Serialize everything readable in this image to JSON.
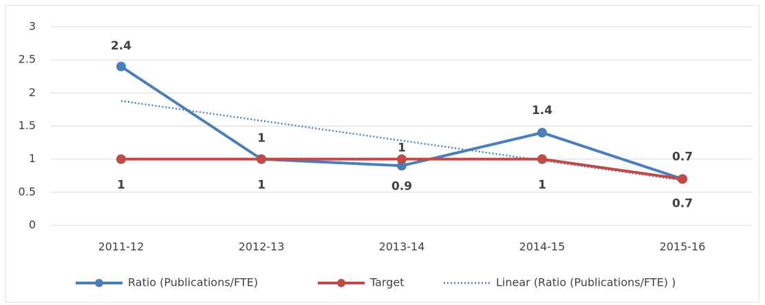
{
  "chart_data": {
    "type": "line",
    "categories": [
      "2011-12",
      "2012-13",
      "2013-14",
      "2014-15",
      "2015-16"
    ],
    "series": [
      {
        "name": "Ratio (Publications/FTE)",
        "color": "#4a7ebb",
        "values": [
          2.4,
          1,
          0.9,
          1.4,
          0.7
        ]
      },
      {
        "name": "Target",
        "color": "#be4b48",
        "values": [
          1,
          1,
          1,
          1,
          0.7
        ]
      },
      {
        "name": "Linear (Ratio (Publications/FTE) )",
        "color": "#4a7ebb",
        "values": [
          1.88,
          1.58,
          1.28,
          0.98,
          0.68
        ]
      }
    ],
    "ylim": [
      0,
      3
    ],
    "yticks": [
      0,
      0.5,
      1,
      1.5,
      2,
      2.5,
      3
    ],
    "grid": true
  }
}
